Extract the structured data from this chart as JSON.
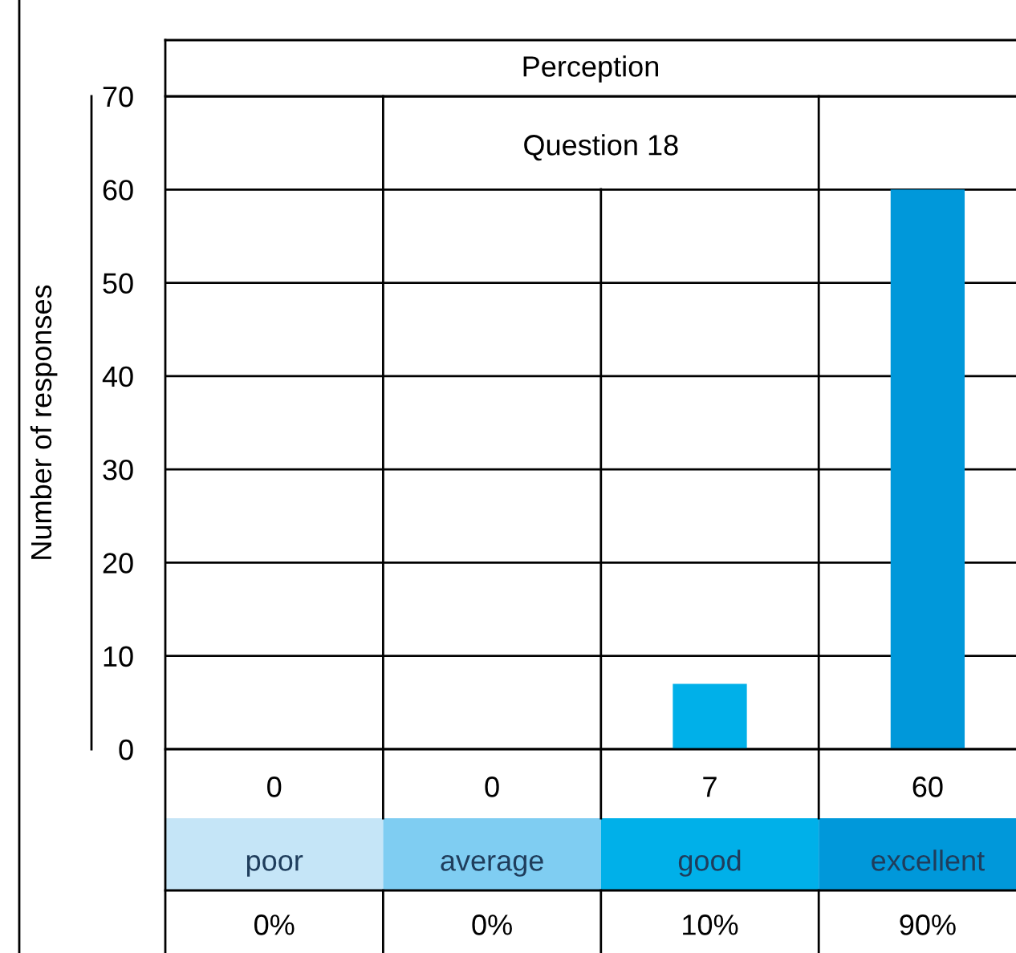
{
  "chart_data": {
    "type": "bar",
    "title": "Perception",
    "subtitle": "Question 18",
    "ylabel": "Number of responses",
    "categories": [
      "poor",
      "average",
      "good",
      "excellent"
    ],
    "values": [
      0,
      0,
      7,
      60
    ],
    "colors": [
      "#c5e5f7",
      "#7fcdf2",
      "#00b0e9",
      "#0098da"
    ],
    "ylim": [
      0,
      70
    ],
    "yticks": [
      0,
      10,
      20,
      30,
      40,
      50,
      60,
      70
    ],
    "grid": "y",
    "data_labels": true,
    "annotations": [
      "0%",
      "0%",
      "10%",
      "90%"
    ]
  }
}
